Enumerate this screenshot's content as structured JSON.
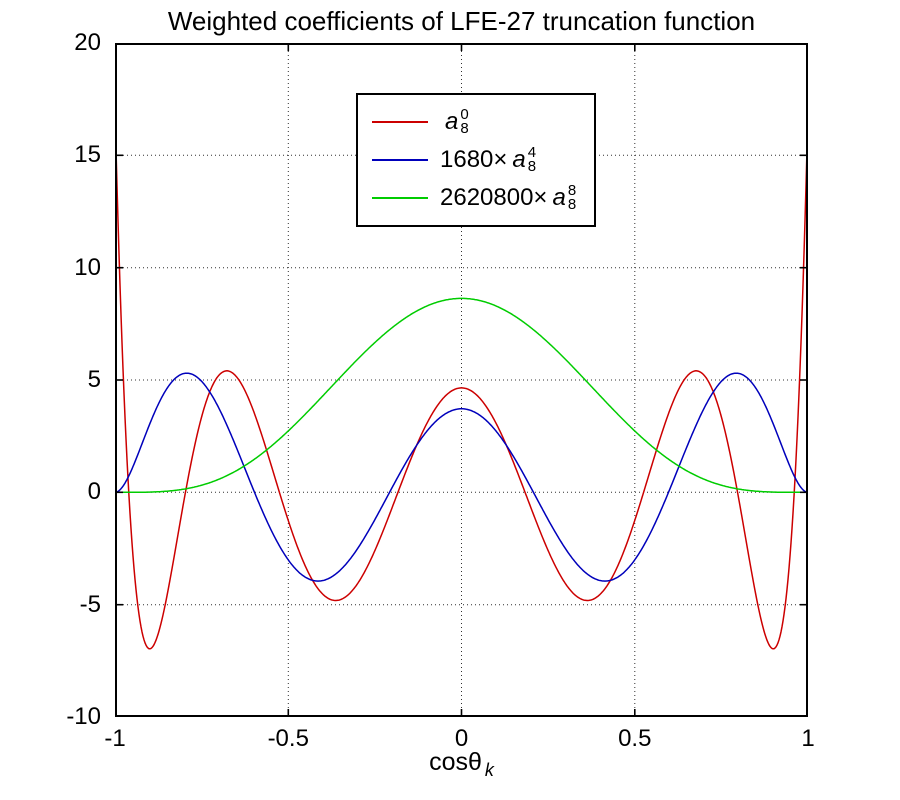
{
  "chart_data": {
    "type": "line",
    "title": "Weighted coefficients of LFE-27 truncation function",
    "xlabel": "cosθ_k",
    "xlabel_parts": {
      "text": "cos",
      "symbol": "θ",
      "sub": "k"
    },
    "ylabel": "",
    "xlim": [
      -1,
      1
    ],
    "ylim": [
      -10,
      20
    ],
    "xticks": [
      -1,
      -0.5,
      0,
      0.5,
      1
    ],
    "xtick_labels": [
      "-1",
      "-0.5",
      "0",
      "0.5",
      "1"
    ],
    "yticks": [
      -10,
      -5,
      0,
      5,
      10,
      15,
      20
    ],
    "ytick_labels": [
      "-10",
      "-5",
      "0",
      "5",
      "10",
      "15",
      "20"
    ],
    "grid": true,
    "legend_position": "upper-center",
    "x_samples": [
      -1,
      -0.9,
      -0.8,
      -0.7,
      -0.6,
      -0.5,
      -0.4,
      -0.3,
      -0.2,
      -0.1,
      0,
      0.1,
      0.2,
      0.3,
      0.4,
      0.5,
      0.6,
      0.7,
      0.8,
      0.9,
      1
    ],
    "series": [
      {
        "name": "a_8^0",
        "label": {
          "prefix": "",
          "var": "a",
          "sup": "0",
          "sub": "8"
        },
        "color": "#cc0000",
        "poly_coeffs": [
          4.6484375,
          0,
          -167.34375,
          0,
          920.390625,
          0,
          -1595.34375,
          0,
          854.6484375
        ],
        "values": [
          17.0,
          -6.967,
          -0.283,
          5.214,
          3.61,
          -1.252,
          -4.539,
          -4.064,
          -0.673,
          3.065,
          4.648,
          3.065,
          -0.673,
          -4.064,
          -4.539,
          -1.252,
          3.61,
          5.214,
          -0.283,
          -6.967,
          17.0
        ]
      },
      {
        "name": "1680× a_8^4",
        "label": {
          "prefix": "1680×",
          "var": "a",
          "sup": "4",
          "sub": "8"
        },
        "color": "#0000bb",
        "poly_coeffs": [
          3.71875,
          0,
          -104.125,
          0,
          438.8125,
          0,
          -580.125,
          0,
          241.71875
        ],
        "values": [
          0.0,
          3.032,
          5.294,
          3.74,
          0.097,
          -3.007,
          -3.926,
          -2.505,
          0.219,
          2.721,
          3.719,
          2.721,
          0.219,
          -2.505,
          -3.926,
          -3.007,
          0.097,
          3.74,
          5.294,
          3.032,
          0.0
        ]
      },
      {
        "name": "2620800× a_8^8",
        "label": {
          "prefix": "2620800×",
          "var": "a",
          "sup": "8",
          "sub": "8"
        },
        "color": "#00cc00",
        "poly_coeffs": [
          8.6328125,
          0,
          -34.53125,
          0,
          51.796875,
          0,
          -34.53125,
          0,
          8.6328125
        ],
        "values": [
          0.0,
          0.011,
          0.145,
          0.584,
          1.448,
          2.732,
          4.298,
          5.92,
          7.332,
          8.293,
          8.633,
          8.293,
          7.332,
          5.92,
          4.298,
          2.732,
          1.448,
          0.584,
          0.145,
          0.011,
          0.0
        ]
      }
    ]
  }
}
